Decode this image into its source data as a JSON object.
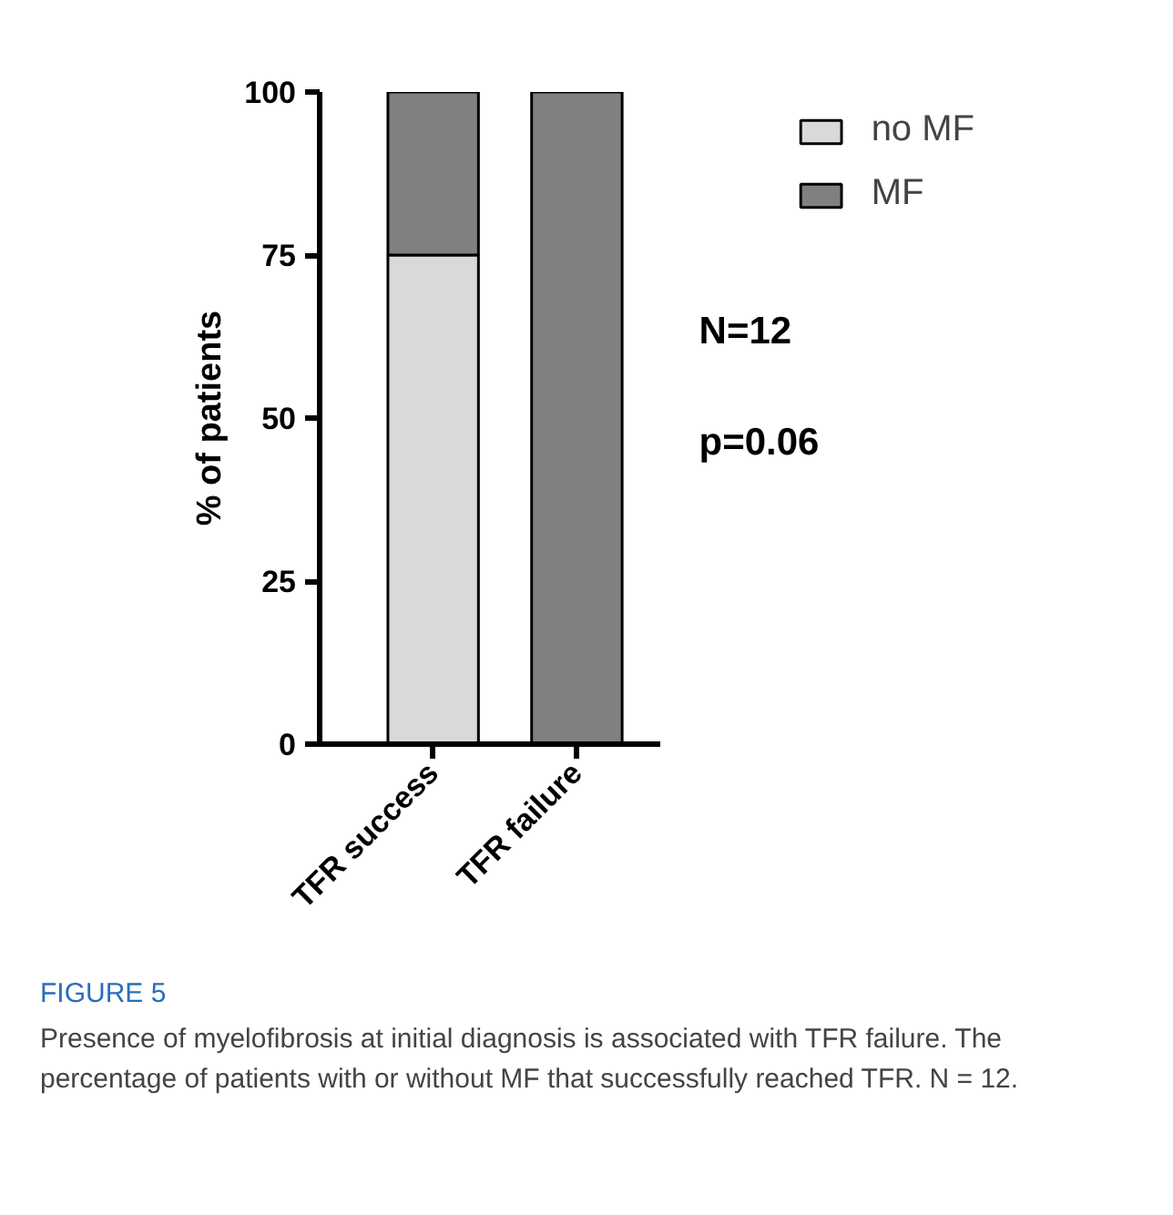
{
  "chart_data": {
    "type": "bar",
    "ylabel": "% of patients",
    "categories": [
      "TFR success",
      "TFR failure"
    ],
    "stacked": true,
    "series": [
      {
        "name": "no MF",
        "color": "#d9d9d9",
        "values": [
          75,
          0
        ]
      },
      {
        "name": "MF",
        "color": "#808080",
        "values": [
          25,
          100
        ]
      }
    ],
    "ylim": [
      0,
      100
    ],
    "yticks": [
      0,
      25,
      50,
      75,
      100
    ],
    "grid": false,
    "legend": "top right",
    "annotations": [
      "N=12",
      "p=0.06",
      "FIGURE 5",
      "Presence of myelofibrosis at initial diagnosis is associated with TFR failure. The percentage of patients with or without MF that successfully reached TFR. N = 12."
    ]
  }
}
